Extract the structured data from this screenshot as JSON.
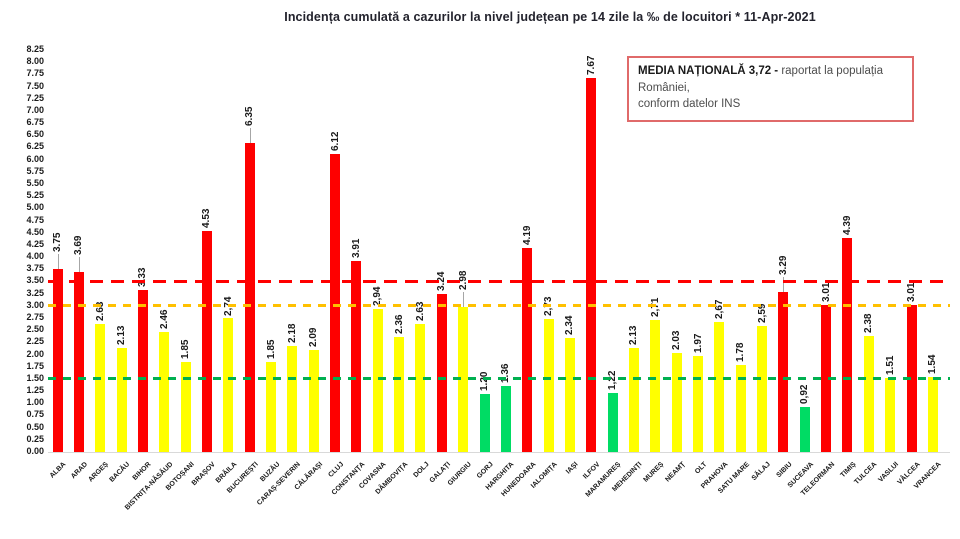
{
  "header": {
    "title": "Incidența cumulată a cazurilor la nivel județean pe 14 zile la ‰ de locuitori *   11-Apr-2021"
  },
  "legend": {
    "bold_text": "MEDIA NAȚIONALĂ  3,72 -",
    "normal_text": " raportat la populația României,",
    "line2": "conform datelor INS"
  },
  "chart_data": {
    "type": "bar",
    "title": "Incidența cumulată a cazurilor la nivel județean pe 14 zile la ‰ de locuitori * 11-Apr-2021",
    "date": "11-Apr-2021",
    "xlabel": "",
    "ylabel": "",
    "ylim": [
      0,
      8.25
    ],
    "ystep": 0.25,
    "grid": false,
    "legend_position": "top-right",
    "national_average": "3,72",
    "bar_colors": {
      "red": "#fe0000",
      "yellow": "#ffff00",
      "green": "#00dc64"
    },
    "threshold_lines": [
      {
        "value": 3.5,
        "color_class": "t-red",
        "color": "#ff0000"
      },
      {
        "value": 3.0,
        "color_class": "t-orange",
        "color": "#ffc000"
      },
      {
        "value": 1.5,
        "color_class": "t-green",
        "color": "#00b050"
      }
    ],
    "counties": [
      {
        "name": "ALBA",
        "label": "3.75",
        "value": 3.75,
        "color": "red",
        "leader": true
      },
      {
        "name": "ARAD",
        "label": "3.69",
        "value": 3.69,
        "color": "red",
        "leader": true
      },
      {
        "name": "ARGEȘ",
        "label": "2.63",
        "value": 2.63,
        "color": "yellow",
        "leader": false
      },
      {
        "name": "BACĂU",
        "label": "2.13",
        "value": 2.13,
        "color": "yellow",
        "leader": false
      },
      {
        "name": "BIHOR",
        "label": "3.33",
        "value": 3.33,
        "color": "red",
        "leader": false
      },
      {
        "name": "BISTRIȚA-NĂSĂUD",
        "label": "2.46",
        "value": 2.46,
        "color": "yellow",
        "leader": false
      },
      {
        "name": "BOTOȘANI",
        "label": "1.85",
        "value": 1.85,
        "color": "yellow",
        "leader": false
      },
      {
        "name": "BRAȘOV",
        "label": "4.53",
        "value": 4.53,
        "color": "red",
        "leader": false
      },
      {
        "name": "BRĂILA",
        "label": "2,74",
        "value": 2.74,
        "color": "yellow",
        "leader": false
      },
      {
        "name": "BUCUREȘTI",
        "label": "6.35",
        "value": 6.35,
        "color": "red",
        "leader": true
      },
      {
        "name": "BUZĂU",
        "label": "1.85",
        "value": 1.85,
        "color": "yellow",
        "leader": false
      },
      {
        "name": "CARAȘ-SEVERIN",
        "label": "2.18",
        "value": 2.18,
        "color": "yellow",
        "leader": false
      },
      {
        "name": "CĂLĂRAȘI",
        "label": "2.09",
        "value": 2.09,
        "color": "yellow",
        "leader": false
      },
      {
        "name": "CLUJ",
        "label": "6.12",
        "value": 6.12,
        "color": "red",
        "leader": false
      },
      {
        "name": "CONSTANȚA",
        "label": "3.91",
        "value": 3.91,
        "color": "red",
        "leader": false
      },
      {
        "name": "COVASNA",
        "label": "2,94",
        "value": 2.94,
        "color": "yellow",
        "leader": false
      },
      {
        "name": "DÂMBOVIȚA",
        "label": "2.36",
        "value": 2.36,
        "color": "yellow",
        "leader": false
      },
      {
        "name": "DOLJ",
        "label": "2.63",
        "value": 2.63,
        "color": "yellow",
        "leader": false
      },
      {
        "name": "GALAȚI",
        "label": "3.24",
        "value": 3.24,
        "color": "red",
        "leader": false
      },
      {
        "name": "GIURGIU",
        "label": "2.98",
        "value": 2.98,
        "color": "yellow",
        "leader": true
      },
      {
        "name": "GORJ",
        "label": "1.20",
        "value": 1.2,
        "color": "green",
        "leader": false
      },
      {
        "name": "HARGHITA",
        "label": "1.36",
        "value": 1.36,
        "color": "green",
        "leader": false
      },
      {
        "name": "HUNEDOARA",
        "label": "4.19",
        "value": 4.19,
        "color": "red",
        "leader": false
      },
      {
        "name": "IALOMIȚA",
        "label": "2,73",
        "value": 2.73,
        "color": "yellow",
        "leader": false
      },
      {
        "name": "IAȘI",
        "label": "2.34",
        "value": 2.34,
        "color": "yellow",
        "leader": false
      },
      {
        "name": "ILFOV",
        "label": "7.67",
        "value": 7.67,
        "color": "red",
        "leader": false
      },
      {
        "name": "MARAMUREȘ",
        "label": "1,22",
        "value": 1.22,
        "color": "green",
        "leader": false
      },
      {
        "name": "MEHEDINȚI",
        "label": "2.13",
        "value": 2.13,
        "color": "yellow",
        "leader": false
      },
      {
        "name": "MUREȘ",
        "label": "2,71",
        "value": 2.71,
        "color": "yellow",
        "leader": false
      },
      {
        "name": "NEAMȚ",
        "label": "2.03",
        "value": 2.03,
        "color": "yellow",
        "leader": false
      },
      {
        "name": "OLT",
        "label": "1.97",
        "value": 1.97,
        "color": "yellow",
        "leader": false
      },
      {
        "name": "PRAHOVA",
        "label": "2,67",
        "value": 2.67,
        "color": "yellow",
        "leader": false
      },
      {
        "name": "SATU MARE",
        "label": "1.78",
        "value": 1.78,
        "color": "yellow",
        "leader": false
      },
      {
        "name": "SĂLAJ",
        "label": "2,59",
        "value": 2.59,
        "color": "yellow",
        "leader": false
      },
      {
        "name": "SIBIU",
        "label": "3.29",
        "value": 3.29,
        "color": "red",
        "leader": true
      },
      {
        "name": "SUCEAVA",
        "label": "0,92",
        "value": 0.92,
        "color": "green",
        "leader": false
      },
      {
        "name": "TELEORMAN",
        "label": "3.01",
        "value": 3.01,
        "color": "red",
        "leader": false
      },
      {
        "name": "TIMIȘ",
        "label": "4.39",
        "value": 4.39,
        "color": "red",
        "leader": false
      },
      {
        "name": "TULCEA",
        "label": "2.38",
        "value": 2.38,
        "color": "yellow",
        "leader": false
      },
      {
        "name": "VASLUI",
        "label": "1.51",
        "value": 1.51,
        "color": "yellow",
        "leader": false
      },
      {
        "name": "VÂLCEA",
        "label": "3.01",
        "value": 3.01,
        "color": "red",
        "leader": false
      },
      {
        "name": "VRANCEA",
        "label": "1.54",
        "value": 1.54,
        "color": "yellow",
        "leader": false
      }
    ]
  }
}
